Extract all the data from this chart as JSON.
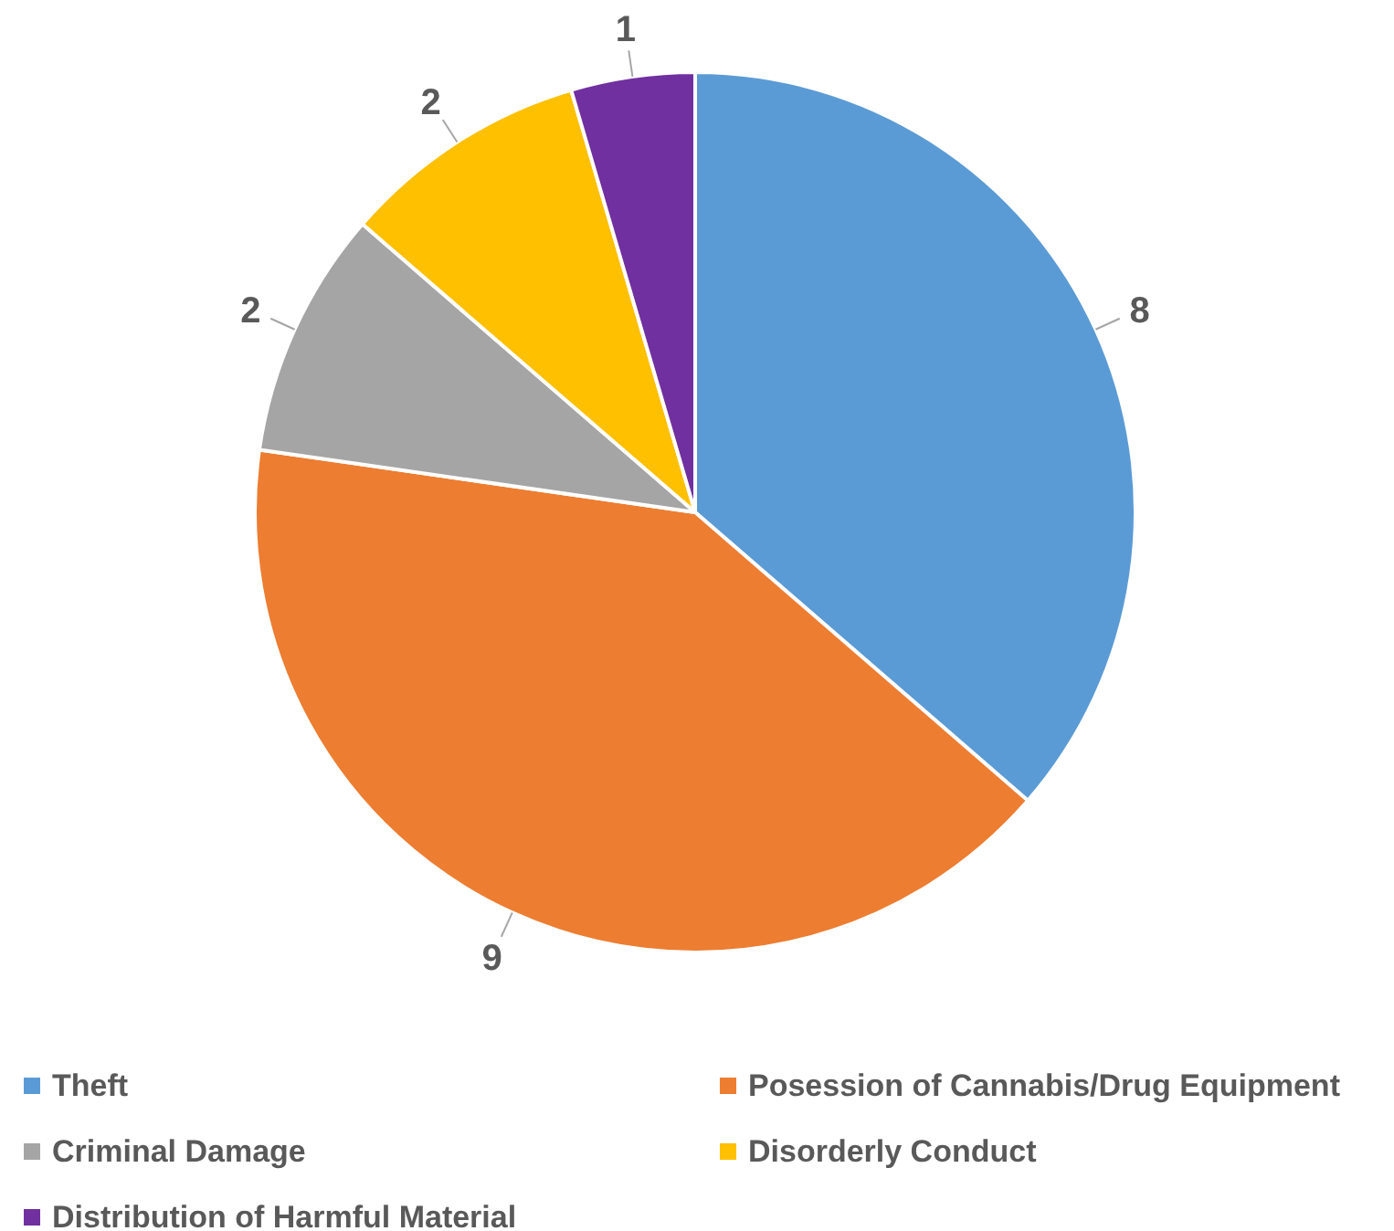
{
  "chart_data": {
    "type": "pie",
    "categories": [
      "Theft",
      "Posession of Cannabis/Drug Equipment",
      "Criminal Damage",
      "Disorderly Conduct",
      "Distribution of Harmful Material"
    ],
    "values": [
      8,
      9,
      2,
      2,
      1
    ],
    "colors": [
      "#5b9bd5",
      "#ed7d31",
      "#a5a5a5",
      "#ffc000",
      "#7030a0"
    ],
    "data_labels": true,
    "legend": "bottom"
  }
}
